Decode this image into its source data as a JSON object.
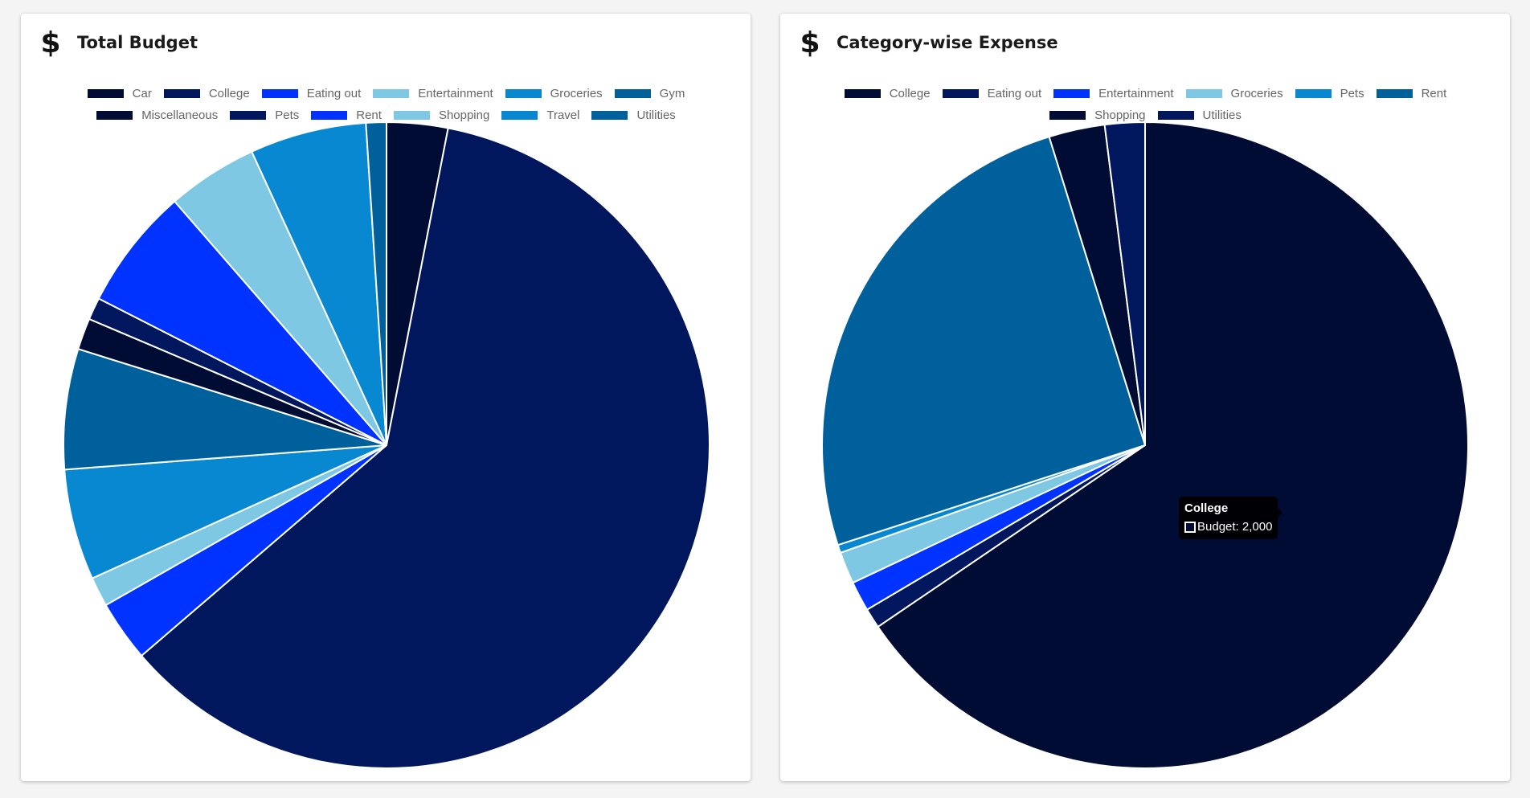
{
  "cards": [
    {
      "icon": "dollar-icon",
      "icon_glyph": "$",
      "title": "Total Budget"
    },
    {
      "icon": "dollar-icon",
      "icon_glyph": "$",
      "title": "Category-wise Expense"
    }
  ],
  "tooltip": {
    "title": "College",
    "label": "Budget: 2,000"
  },
  "chart_data": [
    {
      "type": "pie",
      "title": "Total Budget",
      "legend_position": "top",
      "labels": [
        "Car",
        "College",
        "Eating out",
        "Entertainment",
        "Groceries",
        "Gym",
        "Miscellaneous",
        "Pets",
        "Rent",
        "Shopping",
        "Travel",
        "Utilities"
      ],
      "colors": [
        "#000c33",
        "#00175e",
        "#0033ff",
        "#7ec8e3",
        "#0788d0",
        "#00609c",
        "#000c33",
        "#00175e",
        "#0033ff",
        "#7ec8e3",
        "#0788d0",
        "#00609c"
      ],
      "values": [
        3.3,
        65.5,
        3.3,
        1.6,
        6.0,
        6.5,
        1.7,
        1.2,
        6.6,
        4.9,
        6.3,
        1.1
      ]
    },
    {
      "type": "pie",
      "title": "Category-wise Expense",
      "legend_position": "top",
      "labels": [
        "College",
        "Eating out",
        "Entertainment",
        "Groceries",
        "Pets",
        "Rent",
        "Shopping",
        "Utilities"
      ],
      "colors": [
        "#000c33",
        "#00175e",
        "#0033ff",
        "#7ec8e3",
        "#0788d0",
        "#00609c",
        "#000c33",
        "#00175e"
      ],
      "values": [
        65.5,
        1.0,
        1.5,
        1.6,
        0.4,
        25.2,
        2.8,
        2.0
      ]
    }
  ]
}
